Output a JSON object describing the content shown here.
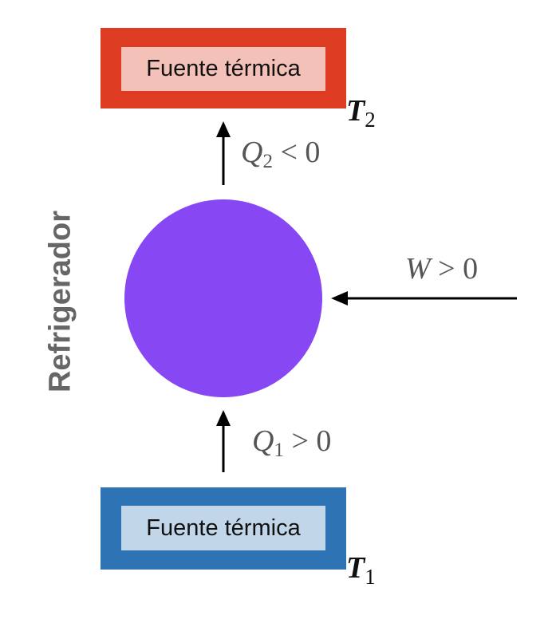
{
  "title": "Refrigerador",
  "hot_source": {
    "label": "Fuente térmica",
    "temp_symbol": "T",
    "temp_subscript": "2",
    "outer_color": "#dd3b22",
    "inner_color": "#f4c1b8"
  },
  "cold_source": {
    "label": "Fuente térmica",
    "temp_symbol": "T",
    "temp_subscript": "1",
    "outer_color": "#2e74b5",
    "inner_color": "#c2d6ea"
  },
  "machine": {
    "color": "#8748f4"
  },
  "q2": {
    "symbol": "Q",
    "subscript": "2",
    "relation": " < 0"
  },
  "q1": {
    "symbol": "Q",
    "subscript": "1",
    "relation": " > 0"
  },
  "work": {
    "symbol": "W",
    "relation": " > 0"
  },
  "arrow_color": "#000000"
}
